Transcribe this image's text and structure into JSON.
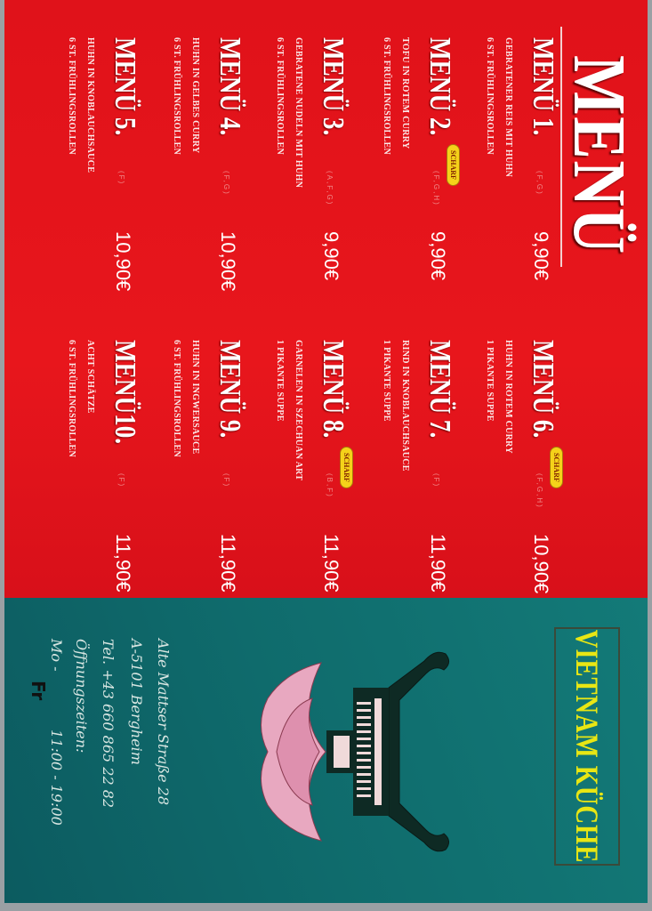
{
  "menu": {
    "title": "MENÜ",
    "left_column": [
      {
        "name": "MENÜ 1.",
        "codes": "(F,G)",
        "price": "9,90€",
        "badge": null,
        "lines": [
          "GEBRATENER REIS MIT HUHN",
          "6 ST. FRÜHLINGSROLLEN"
        ]
      },
      {
        "name": "MENÜ 2.",
        "codes": "(F,G,H)",
        "price": "9,90€",
        "badge": "SCHARF",
        "lines": [
          "TOFU IN ROTEM CURRY",
          "6 ST. FRÜHLINGSROLLEN"
        ]
      },
      {
        "name": "MENÜ 3.",
        "codes": "(A,F,G)",
        "price": "9,90€",
        "badge": null,
        "lines": [
          "GEBRATENE NUDELN MIT HUHN",
          "6 ST. FRÜHLINGSROLLEN"
        ]
      },
      {
        "name": "MENÜ 4.",
        "codes": "(F,G)",
        "price": "10,90€",
        "badge": null,
        "lines": [
          "HUHN IN GELBES CURRY",
          "6 ST. FRÜHLINGSROLLEN"
        ]
      },
      {
        "name": "MENÜ 5.",
        "codes": "(F)",
        "price": "10,90€",
        "badge": null,
        "lines": [
          "HUHN IN KNOBLAUCHSAUCE",
          "6 ST. FRÜHLINGSROLLEN"
        ]
      }
    ],
    "right_column": [
      {
        "name": "MENÜ 6.",
        "codes": "(F,G,H)",
        "price": "10,90€",
        "badge": "SCHARF",
        "lines": [
          "HUHN IN ROTEM CURRY",
          "1 PIKANTE SUPPE"
        ]
      },
      {
        "name": "MENÜ 7.",
        "codes": "(F)",
        "price": "11,90€",
        "badge": null,
        "lines": [
          "RIND IN KNOBLAUCHSAUCE",
          "1 PIKANTE SUPPE"
        ]
      },
      {
        "name": "MENÜ 8.",
        "codes": "(B,F)",
        "price": "11,90€",
        "badge": "SCHARF",
        "lines": [
          "GARNELEN IN SZECHUAN ART",
          "1 PIKANTE SUPPE"
        ]
      },
      {
        "name": "MENÜ 9.",
        "codes": "(F)",
        "price": "11,90€",
        "badge": null,
        "lines": [
          "HUHN IN INGWERSAUCE",
          "6 ST. FRÜHLINGSROLLEN"
        ]
      },
      {
        "name": "MENÜ10.",
        "codes": "(F)",
        "price": "11,90€",
        "badge": null,
        "lines": [
          "ACHT SCHÄTZE",
          "6 ST. FRÜHLINGSROLLEN"
        ]
      }
    ]
  },
  "restaurant": {
    "name": "VIETNAM KÜCHE",
    "address_line1": "Alte Mattser Straße 28",
    "address_line2": "A-5101 Bergheim",
    "phone": "Tel. +43 660 865 22 82",
    "hours_label": "Öffnungszeiten:",
    "hours_days_prefix": "Mo -",
    "hours_time": "11:00 - 19:00",
    "hours_handwritten": "Fr"
  },
  "icons": {
    "logo": "pagoda-lotus-logo"
  },
  "colors": {
    "menu_background": "#e0121a",
    "info_background": "#0f6b6c",
    "brand_text": "#e8e614",
    "badge": "#f5d21a"
  }
}
